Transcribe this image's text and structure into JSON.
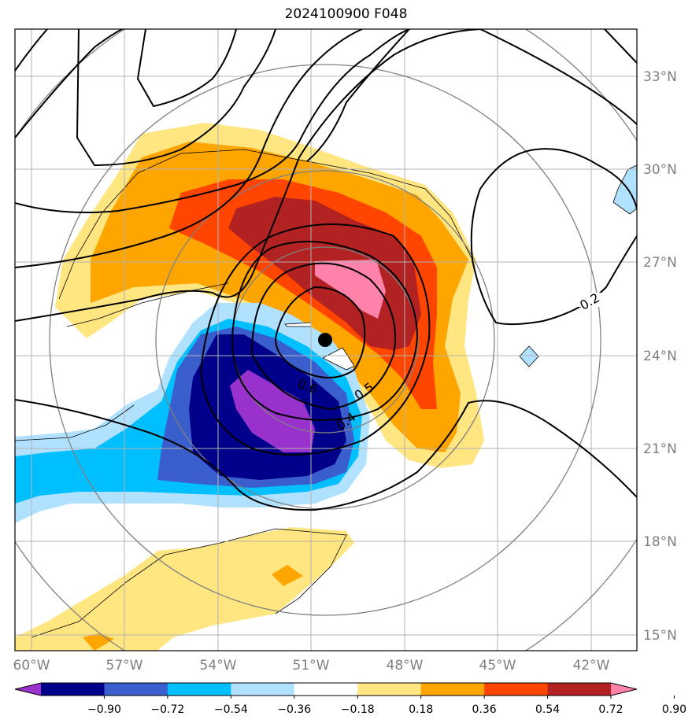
{
  "title": "2024100900 F048",
  "lat_labels": [
    "33°N",
    "30°N",
    "27°N",
    "24°N",
    "21°N",
    "18°N",
    "15°N"
  ],
  "lon_labels": [
    "60°W",
    "57°W",
    "54°W",
    "51°W",
    "48°W",
    "45°W",
    "42°W"
  ],
  "contour_labels": [
    "0.2",
    "0.6",
    "0.5",
    "0.4"
  ],
  "colorbar": {
    "labels": [
      "−0.90",
      "−0.72",
      "−0.54",
      "−0.36",
      "−0.18",
      "0.18",
      "0.36",
      "0.54",
      "0.72",
      "0.90"
    ],
    "colors": [
      "#9932cc",
      "#00008b",
      "#3a5fcd",
      "#00bfff",
      "#b0e2ff",
      "#ffffff",
      "#ffe680",
      "#ffa500",
      "#ff4500",
      "#b22222",
      "#ff82ab"
    ]
  },
  "storm_center": {
    "lon": -50.5,
    "lat": 24.5
  }
}
